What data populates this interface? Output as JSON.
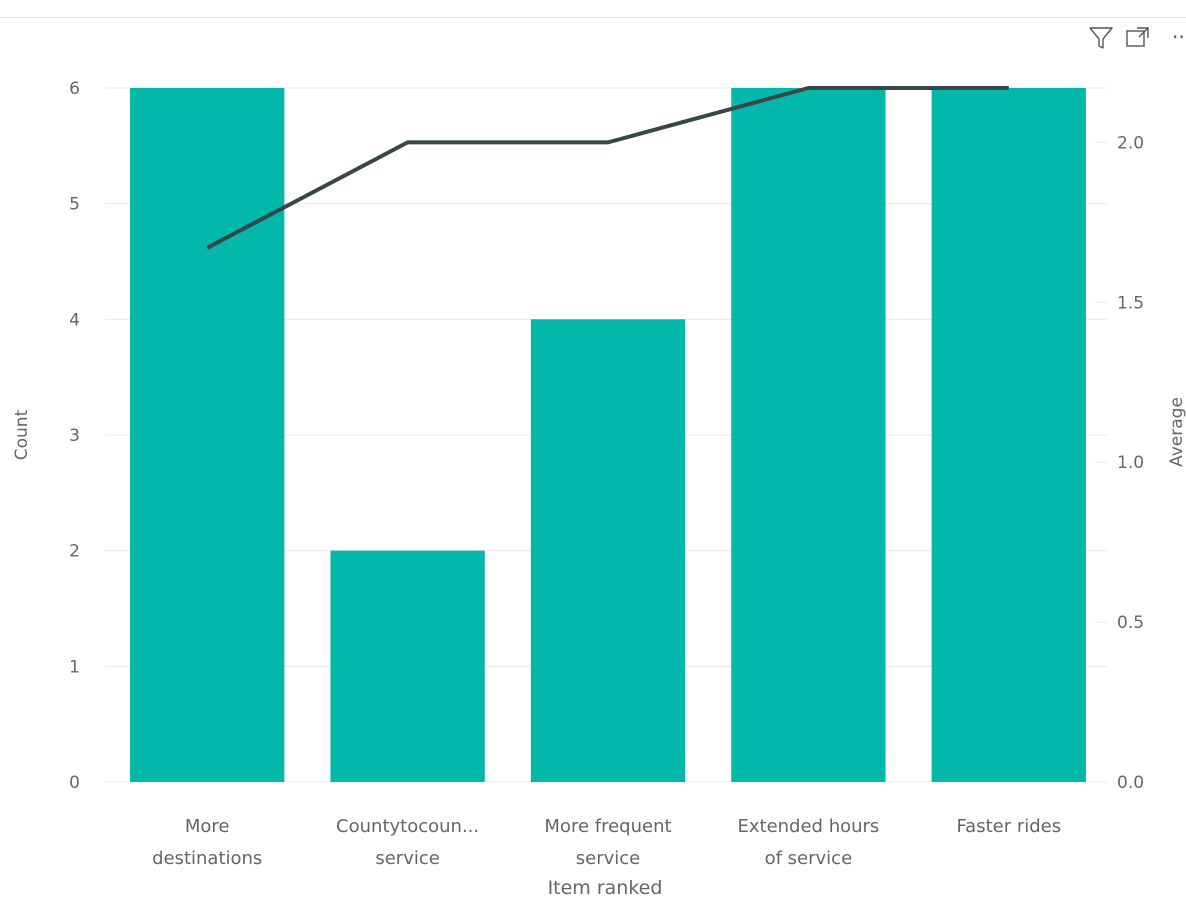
{
  "visual_header": {
    "filter_icon": "filter-icon",
    "focus_mode_icon": "focus-mode-icon",
    "more_options_icon": "more-options-icon",
    "more_options_text": "··"
  },
  "colors": {
    "bar": "#01B8AA",
    "line": "#374649",
    "grid": "#e8e8e8",
    "text": "#666666"
  },
  "chart_data": {
    "type": "bar",
    "title": "",
    "xlabel": "Item ranked",
    "ylabel": "Count",
    "y2label": "Average",
    "categories": [
      [
        "More",
        "destinations"
      ],
      [
        "Countytocoun...",
        "service"
      ],
      [
        "More frequent",
        "service"
      ],
      [
        "Extended hours",
        "of service"
      ],
      [
        "Faster rides"
      ]
    ],
    "series": [
      {
        "type": "bar",
        "axis": "left",
        "values": [
          6,
          2,
          4,
          6,
          6
        ]
      },
      {
        "type": "line",
        "axis": "right",
        "values": [
          1.67,
          2.0,
          2.0,
          2.17,
          2.17
        ]
      }
    ],
    "ylim": [
      0,
      6
    ],
    "y2lim": [
      0,
      2.17
    ],
    "yticks": [
      "0",
      "1",
      "2",
      "3",
      "4",
      "5",
      "6"
    ],
    "y2ticks": [
      "0.0",
      "0.5",
      "1.0",
      "1.5",
      "2.0"
    ],
    "grid": true,
    "legend": "none"
  }
}
